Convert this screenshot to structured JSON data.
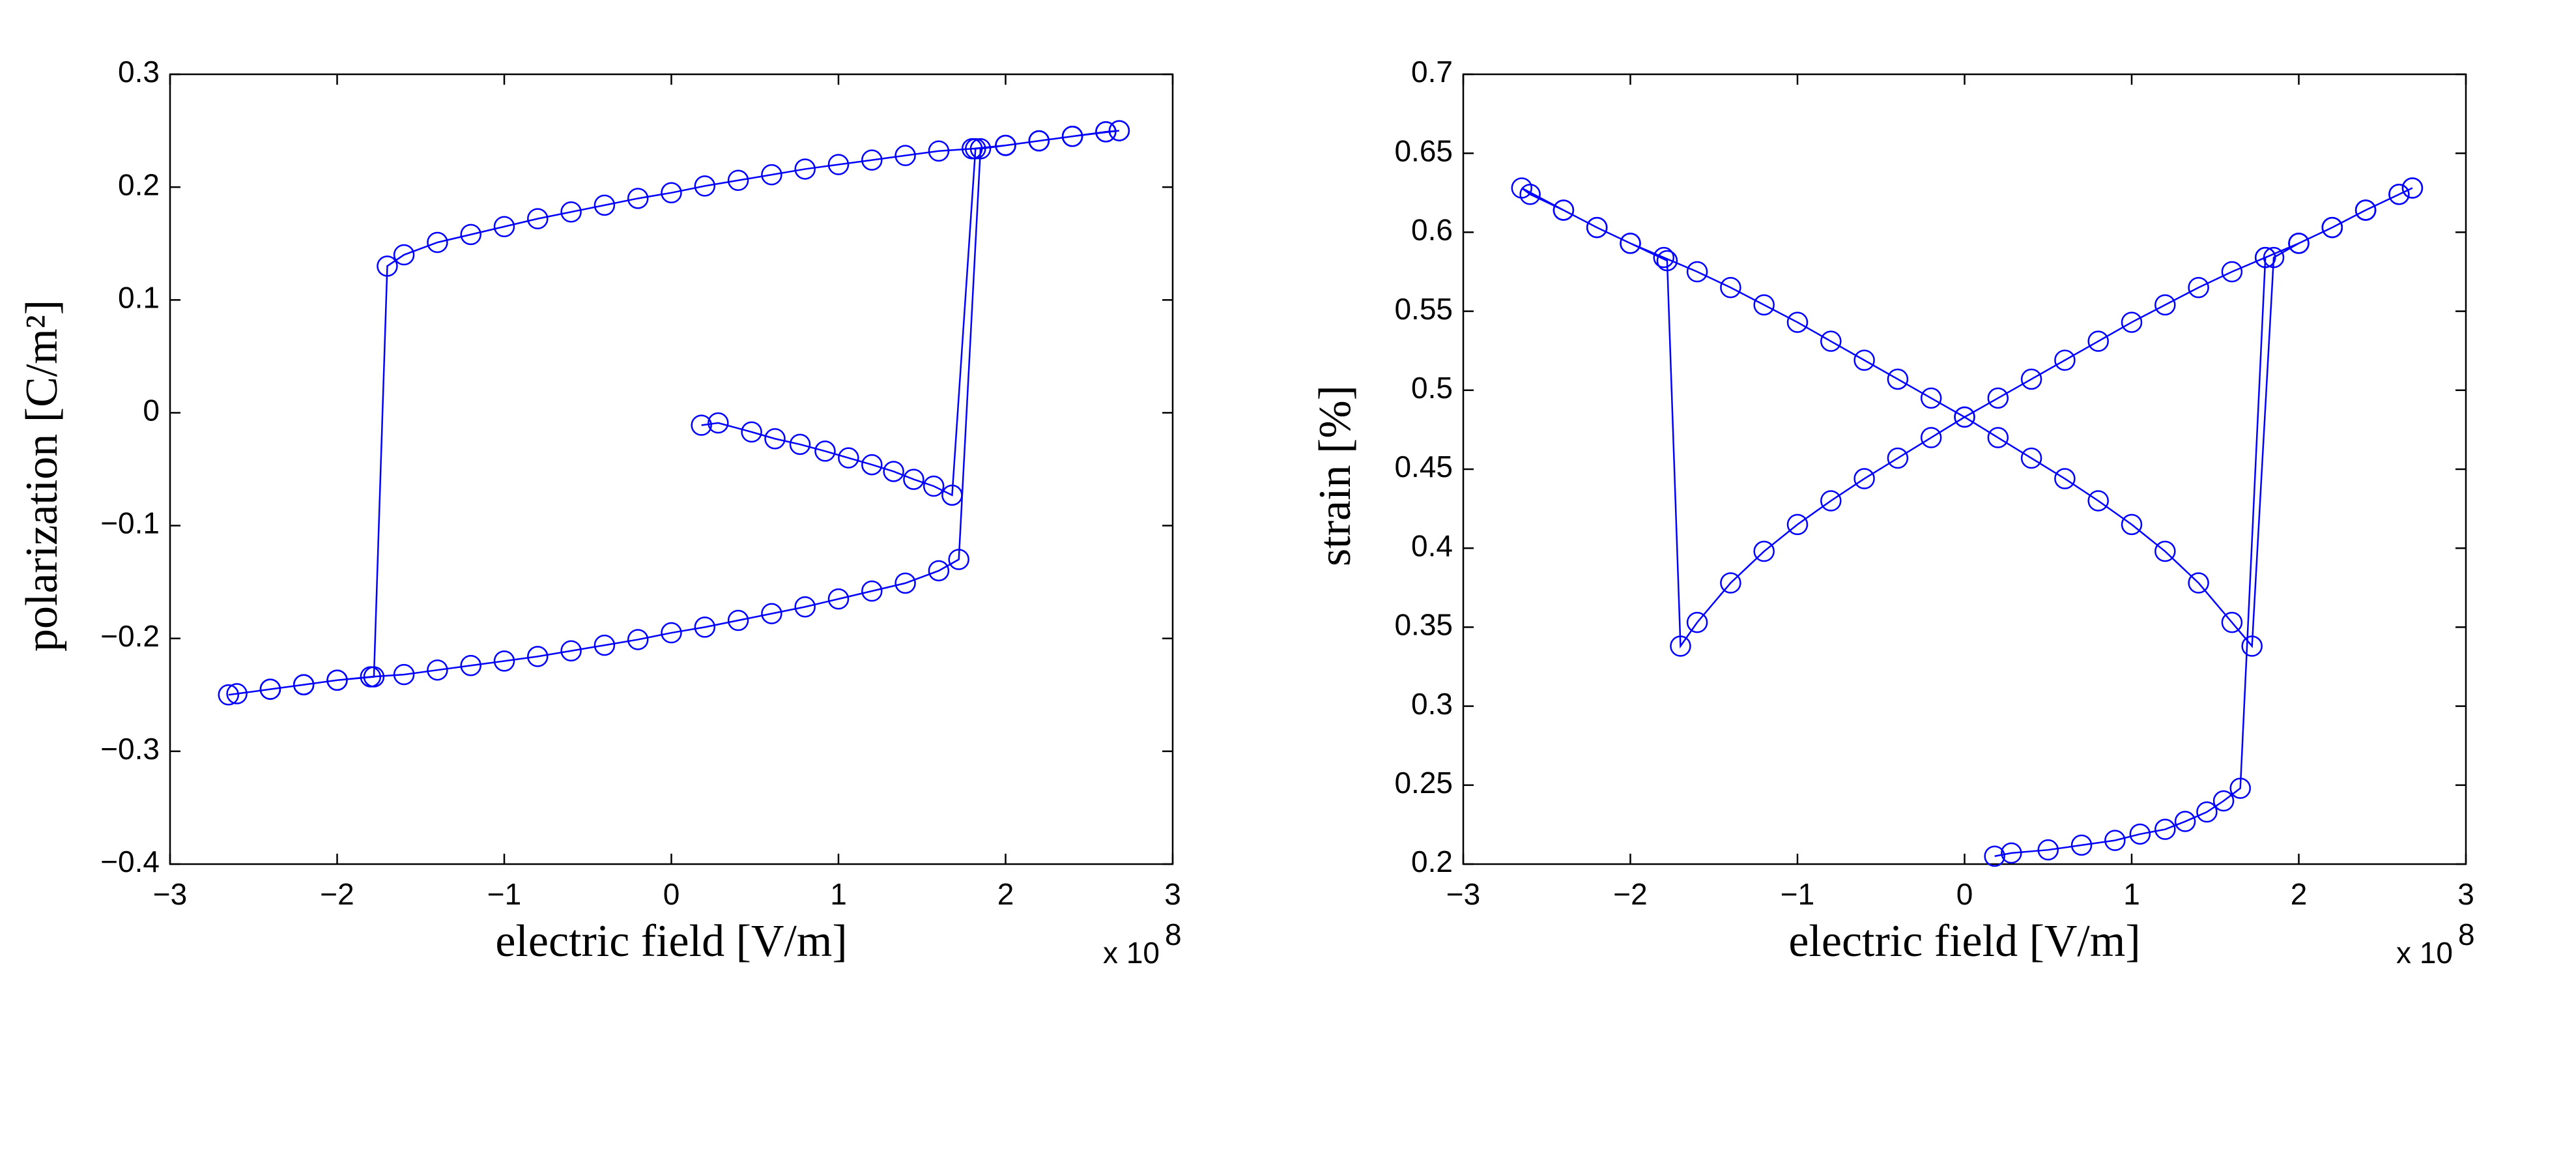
{
  "chart_data": [
    {
      "type": "line",
      "xlabel": "electric field [V/m]",
      "ylabel": "polarization [C/m²]",
      "x_multiplier": "x 10",
      "x_exponent": "8",
      "color": "#0000ff",
      "marker": "circle",
      "xlim": [
        -3,
        3
      ],
      "xticks": [
        {
          "value": -3,
          "label": "−3"
        },
        {
          "value": -2,
          "label": "−2"
        },
        {
          "value": -1,
          "label": "−1"
        },
        0,
        1,
        2,
        3
      ],
      "ylim": [
        -0.4,
        0.3
      ],
      "yticks": [
        {
          "value": -0.4,
          "label": "−0.4"
        },
        {
          "value": -0.3,
          "label": "−0.3"
        },
        {
          "value": -0.2,
          "label": "−0.2"
        },
        {
          "value": -0.1,
          "label": "−0.1"
        },
        0,
        0.1,
        0.2,
        0.3
      ],
      "x": [
        0.18,
        0.28,
        0.48,
        0.62,
        0.77,
        0.92,
        1.06,
        1.2,
        1.33,
        1.45,
        1.57,
        1.68,
        1.82,
        2.0,
        2.2,
        2.4,
        2.6,
        2.68,
        2.4,
        2.2,
        2.0,
        1.8,
        1.6,
        1.4,
        1.2,
        1.0,
        0.8,
        0.6,
        0.4,
        0.2,
        0,
        -0.2,
        -0.4,
        -0.6,
        -0.8,
        -1.0,
        -1.2,
        -1.4,
        -1.6,
        -1.7,
        -1.78,
        -2.0,
        -2.2,
        -2.4,
        -2.6,
        -2.65,
        -2.4,
        -2.2,
        -2.0,
        -1.8,
        -1.6,
        -1.4,
        -1.2,
        -1.0,
        -0.8,
        -0.6,
        -0.4,
        -0.2,
        0,
        0.2,
        0.4,
        0.6,
        0.8,
        1.0,
        1.2,
        1.4,
        1.6,
        1.72,
        1.85,
        2.0,
        2.2,
        2.4,
        2.6,
        2.68
      ],
      "values": [
        -0.011,
        -0.009,
        -0.017,
        -0.023,
        -0.028,
        -0.034,
        -0.04,
        -0.046,
        -0.052,
        -0.059,
        -0.065,
        -0.073,
        0.234,
        0.237,
        0.241,
        0.245,
        0.249,
        0.25,
        0.245,
        0.241,
        0.237,
        0.234,
        0.232,
        0.228,
        0.224,
        0.22,
        0.216,
        0.211,
        0.206,
        0.201,
        0.195,
        0.19,
        0.184,
        0.178,
        0.172,
        0.165,
        0.158,
        0.151,
        0.14,
        0.13,
        -0.234,
        -0.237,
        -0.241,
        -0.245,
        -0.249,
        -0.25,
        -0.245,
        -0.241,
        -0.237,
        -0.234,
        -0.232,
        -0.228,
        -0.224,
        -0.22,
        -0.216,
        -0.211,
        -0.206,
        -0.201,
        -0.195,
        -0.19,
        -0.184,
        -0.178,
        -0.172,
        -0.165,
        -0.158,
        -0.151,
        -0.14,
        -0.13,
        0.234,
        0.237,
        0.241,
        0.245,
        0.249,
        0.25
      ]
    },
    {
      "type": "line",
      "xlabel": "electric field [V/m]",
      "ylabel": "strain [%]",
      "x_multiplier": "x 10",
      "x_exponent": "8",
      "color": "#0000ff",
      "marker": "circle",
      "xlim": [
        -3,
        3
      ],
      "xticks": [
        {
          "value": -3,
          "label": "−3"
        },
        {
          "value": -2,
          "label": "−2"
        },
        {
          "value": -1,
          "label": "−1"
        },
        0,
        1,
        2,
        3
      ],
      "ylim": [
        0.2,
        0.7
      ],
      "yticks": [
        0.2,
        0.25,
        0.3,
        0.35,
        0.4,
        0.45,
        0.5,
        0.55,
        0.6,
        0.65,
        0.7
      ],
      "x": [
        0.18,
        0.28,
        0.5,
        0.7,
        0.9,
        1.05,
        1.2,
        1.32,
        1.45,
        1.55,
        1.65,
        1.8,
        2.0,
        2.2,
        2.4,
        2.6,
        2.68,
        2.4,
        2.2,
        2.0,
        1.8,
        1.6,
        1.4,
        1.2,
        1.0,
        0.8,
        0.6,
        0.4,
        0.2,
        0,
        -0.2,
        -0.4,
        -0.6,
        -0.8,
        -1.0,
        -1.2,
        -1.4,
        -1.6,
        -1.7,
        -1.78,
        -2.0,
        -2.2,
        -2.4,
        -2.6,
        -2.65,
        -2.4,
        -2.2,
        -2.0,
        -1.8,
        -1.6,
        -1.4,
        -1.2,
        -1.0,
        -0.8,
        -0.6,
        -0.4,
        -0.2,
        0,
        0.2,
        0.4,
        0.6,
        0.8,
        1.0,
        1.2,
        1.4,
        1.6,
        1.72,
        1.85,
        2.0,
        2.2,
        2.4,
        2.6,
        2.68
      ],
      "values": [
        0.205,
        0.207,
        0.209,
        0.212,
        0.215,
        0.219,
        0.222,
        0.227,
        0.233,
        0.24,
        0.248,
        0.584,
        0.593,
        0.603,
        0.614,
        0.624,
        0.628,
        0.614,
        0.603,
        0.593,
        0.584,
        0.575,
        0.565,
        0.554,
        0.543,
        0.531,
        0.519,
        0.507,
        0.495,
        0.483,
        0.47,
        0.457,
        0.444,
        0.43,
        0.415,
        0.398,
        0.378,
        0.353,
        0.338,
        0.582,
        0.593,
        0.603,
        0.614,
        0.624,
        0.628,
        0.614,
        0.603,
        0.593,
        0.584,
        0.575,
        0.565,
        0.554,
        0.543,
        0.531,
        0.519,
        0.507,
        0.495,
        0.483,
        0.47,
        0.457,
        0.444,
        0.43,
        0.415,
        0.398,
        0.378,
        0.353,
        0.338,
        0.584,
        0.593,
        0.603,
        0.614,
        0.624,
        0.628
      ]
    }
  ]
}
